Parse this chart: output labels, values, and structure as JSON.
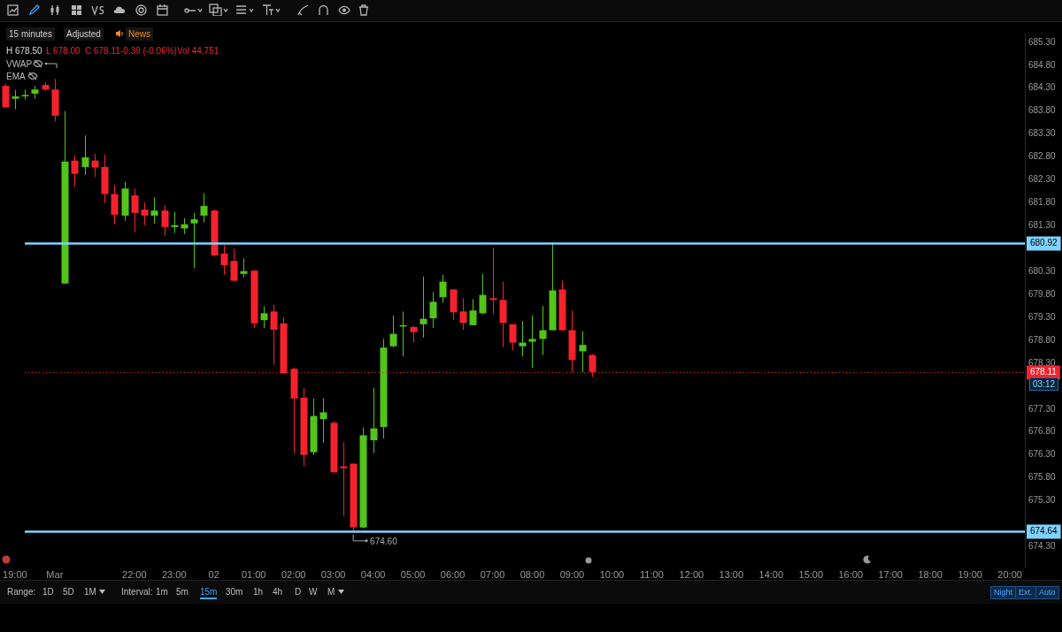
{
  "chart_data": {
    "type": "candlestick",
    "categories": [
      null,
      "19:00",
      null,
      null,
      null,
      "Mar",
      null,
      null,
      null,
      null,
      null,
      null,
      null,
      "22:00",
      null,
      null,
      null,
      "23:00",
      null,
      null,
      null,
      "02",
      null,
      null,
      null,
      "01:00",
      null,
      null,
      null,
      "02:00",
      null,
      null,
      null,
      "03:00",
      null,
      null,
      null,
      "04:00",
      null,
      null,
      null,
      "05:00",
      null,
      null,
      null,
      "06:00",
      null,
      null,
      null,
      "07:00",
      null,
      null,
      null,
      "08:00",
      null,
      null,
      null,
      "09:00",
      null,
      null,
      null,
      "10:00",
      null,
      null,
      null,
      "11:00",
      null,
      null,
      null,
      "12:00",
      null,
      null,
      null,
      "13:00",
      null,
      null,
      null,
      "14:00",
      null,
      null,
      null,
      "15:00",
      null,
      null,
      null,
      "16:00",
      null,
      null,
      null,
      "17:00",
      null,
      null,
      null,
      "18:00",
      null,
      null,
      null,
      "19:00",
      null,
      null,
      null,
      "20:00",
      null
    ],
    "ylim": [
      673.83,
      685.49
    ],
    "yticks": [
      {
        "value": 674.3,
        "label": "674.30"
      },
      {
        "value": 675.3,
        "label": "675.30"
      },
      {
        "value": 675.8,
        "label": "675.80"
      },
      {
        "value": 676.3,
        "label": "676.30"
      },
      {
        "value": 676.8,
        "label": "676.80"
      },
      {
        "value": 677.3,
        "label": "677.30"
      },
      {
        "value": 678.3,
        "label": "678.30"
      },
      {
        "value": 678.8,
        "label": "678.80"
      },
      {
        "value": 679.3,
        "label": "679.30"
      },
      {
        "value": 679.8,
        "label": "679.80"
      },
      {
        "value": 680.3,
        "label": "680.30"
      },
      {
        "value": 681.3,
        "label": "681.30"
      },
      {
        "value": 681.8,
        "label": "681.80"
      },
      {
        "value": 682.3,
        "label": "682.30"
      },
      {
        "value": 682.8,
        "label": "682.80"
      },
      {
        "value": 683.3,
        "label": "683.30"
      },
      {
        "value": 683.8,
        "label": "683.80"
      },
      {
        "value": 684.3,
        "label": "684.30"
      },
      {
        "value": 684.8,
        "label": "684.80"
      },
      {
        "value": 685.3,
        "label": "685.30"
      }
    ],
    "series": [
      {
        "ohlc": [
          [
            684.35,
            684.4,
            683.88,
            683.88
          ],
          [
            684.07,
            684.26,
            683.84,
            684.12
          ],
          [
            684.13,
            684.27,
            684.05,
            684.15
          ],
          [
            684.18,
            684.35,
            684.07,
            684.27
          ],
          [
            684.37,
            684.43,
            684.24,
            684.27
          ],
          [
            684.27,
            684.5,
            683.57,
            683.7
          ],
          [
            680.04,
            683.8,
            680.04,
            682.7
          ],
          [
            682.72,
            682.83,
            682.15,
            682.43
          ],
          [
            682.58,
            683.27,
            682.41,
            682.79
          ],
          [
            682.72,
            682.87,
            682.36,
            682.57
          ],
          [
            682.58,
            682.85,
            681.79,
            681.99
          ],
          [
            681.99,
            682.19,
            681.33,
            681.54
          ],
          [
            681.52,
            682.26,
            681.41,
            682.11
          ],
          [
            681.96,
            682.11,
            681.16,
            681.58
          ],
          [
            681.65,
            681.81,
            681.31,
            681.52
          ],
          [
            681.52,
            681.92,
            681.35,
            681.63
          ],
          [
            681.63,
            681.75,
            681.08,
            681.27
          ],
          [
            681.27,
            681.6,
            681.14,
            681.31
          ],
          [
            681.24,
            681.46,
            681.12,
            681.33
          ],
          [
            681.35,
            681.58,
            680.38,
            681.44
          ],
          [
            681.52,
            682.01,
            681.37,
            681.73
          ],
          [
            681.63,
            681.65,
            680.63,
            680.65
          ],
          [
            680.69,
            680.88,
            680.23,
            680.44
          ],
          [
            680.53,
            680.8,
            680.08,
            680.1
          ],
          [
            680.25,
            680.59,
            680.17,
            680.31
          ],
          [
            680.32,
            680.32,
            679.07,
            679.17
          ],
          [
            679.24,
            679.54,
            679.07,
            679.39
          ],
          [
            679.43,
            679.58,
            678.27,
            679.03
          ],
          [
            679.17,
            679.3,
            678.06,
            678.08
          ],
          [
            678.18,
            678.2,
            676.34,
            677.53
          ],
          [
            677.55,
            677.76,
            676.05,
            676.3
          ],
          [
            676.36,
            677.53,
            676.3,
            677.15
          ],
          [
            677.08,
            677.53,
            676.56,
            677.23
          ],
          [
            677.0,
            677.04,
            675.92,
            675.92
          ],
          [
            676.05,
            676.58,
            674.97,
            676.01
          ],
          [
            676.11,
            676.11,
            674.6,
            674.72
          ],
          [
            674.72,
            676.9,
            674.7,
            676.73
          ],
          [
            676.62,
            677.76,
            676.34,
            676.88
          ],
          [
            676.91,
            678.83,
            676.66,
            678.64
          ],
          [
            678.67,
            679.34,
            678.65,
            678.94
          ],
          [
            679.1,
            679.43,
            678.45,
            679.13
          ],
          [
            679.09,
            679.12,
            678.75,
            678.98
          ],
          [
            679.15,
            680.19,
            678.86,
            679.27
          ],
          [
            679.28,
            679.85,
            679.07,
            679.64
          ],
          [
            679.74,
            680.23,
            679.62,
            680.08
          ],
          [
            679.91,
            679.91,
            679.24,
            679.41
          ],
          [
            679.43,
            679.72,
            679.03,
            679.18
          ],
          [
            679.13,
            679.7,
            679.13,
            679.45
          ],
          [
            679.39,
            680.25,
            679.37,
            679.79
          ],
          [
            679.72,
            680.82,
            679.37,
            679.68
          ],
          [
            679.68,
            680.08,
            678.65,
            679.18
          ],
          [
            679.15,
            679.15,
            678.58,
            678.75
          ],
          [
            678.67,
            679.22,
            678.45,
            678.75
          ],
          [
            678.77,
            679.34,
            678.2,
            678.83
          ],
          [
            678.83,
            679.55,
            678.48,
            679.02
          ],
          [
            679.02,
            680.92,
            679.02,
            679.89
          ],
          [
            679.91,
            680.1,
            679.0,
            679.02
          ],
          [
            679.02,
            679.45,
            678.1,
            678.37
          ],
          [
            678.56,
            679.0,
            678.1,
            678.7
          ],
          [
            678.48,
            678.5,
            678.0,
            678.11
          ],
          null,
          null,
          null,
          null,
          null,
          null,
          null,
          null,
          null,
          null,
          null,
          null,
          null,
          null,
          null,
          null,
          null,
          null,
          null,
          null,
          null,
          null,
          null,
          null,
          null,
          null,
          null,
          null,
          null,
          null,
          null,
          null,
          null,
          null,
          null,
          null,
          null,
          null,
          null,
          null,
          null,
          null,
          null
        ],
        "colors": [
          "#f5222d",
          "#52c41a",
          "#52c41a",
          "#52c41a",
          "#f5222d",
          "#f5222d",
          "#52c41a",
          "#f5222d",
          "#52c41a",
          "#f5222d",
          "#f5222d",
          "#f5222d",
          "#52c41a",
          "#f5222d",
          "#f5222d",
          "#52c41a",
          "#f5222d",
          "#52c41a",
          "#52c41a",
          "#52c41a",
          "#52c41a",
          "#f5222d",
          "#f5222d",
          "#f5222d",
          "#52c41a",
          "#f5222d",
          "#52c41a",
          "#f5222d",
          "#f5222d",
          "#f5222d",
          "#f5222d",
          "#52c41a",
          "#52c41a",
          "#f5222d",
          "#f5222d",
          "#f5222d",
          "#52c41a",
          "#52c41a",
          "#52c41a",
          "#52c41a",
          "#52c41a",
          "#f5222d",
          "#52c41a",
          "#52c41a",
          "#52c41a",
          "#f5222d",
          "#f5222d",
          "#52c41a",
          "#52c41a",
          "#f5222d",
          "#f5222d",
          "#f5222d",
          "#52c41a",
          "#52c41a",
          "#52c41a",
          "#52c41a",
          "#f5222d",
          "#f5222d",
          "#52c41a",
          "#f5222d",
          null,
          null,
          null,
          null,
          null,
          null,
          null,
          null,
          null,
          null,
          null,
          null,
          null,
          null,
          null,
          null,
          null,
          null,
          null,
          null,
          null,
          null,
          null,
          null,
          null,
          null,
          null,
          null,
          null,
          null,
          null,
          null,
          null,
          null,
          null,
          null,
          null,
          null,
          null,
          null,
          null,
          null,
          null
        ]
      }
    ],
    "ref_lines": [
      {
        "axis": "y",
        "value": 680.92,
        "label": "680.92",
        "color": "#7fd3ff",
        "line_style": "solid"
      },
      {
        "axis": "y",
        "value": 674.64,
        "label": "674.64",
        "color": "#7fd3ff",
        "line_style": "solid"
      },
      {
        "axis": "y",
        "value": 678.11,
        "label": "678.11",
        "color": "#f5222d",
        "line_style": "dotted"
      }
    ],
    "annotations": [
      "15 minutes",
      "Adjusted",
      "News",
      "H 678.50",
      "L 678.00",
      "C 678.11",
      "-0.39 (-0.06%)",
      "Vol 44,751",
      "VWAP",
      "EMA",
      "Range:",
      "1D",
      "5D",
      "1M",
      "Interval:",
      "1m",
      "5m",
      "15m",
      "30m",
      "1h",
      "4h",
      "D",
      "W",
      "M",
      "Night",
      "Ext.",
      "Auto",
      "03:12",
      {
        "text": "674.60",
        "y": 674.6
      }
    ],
    "grid": false
  }
}
